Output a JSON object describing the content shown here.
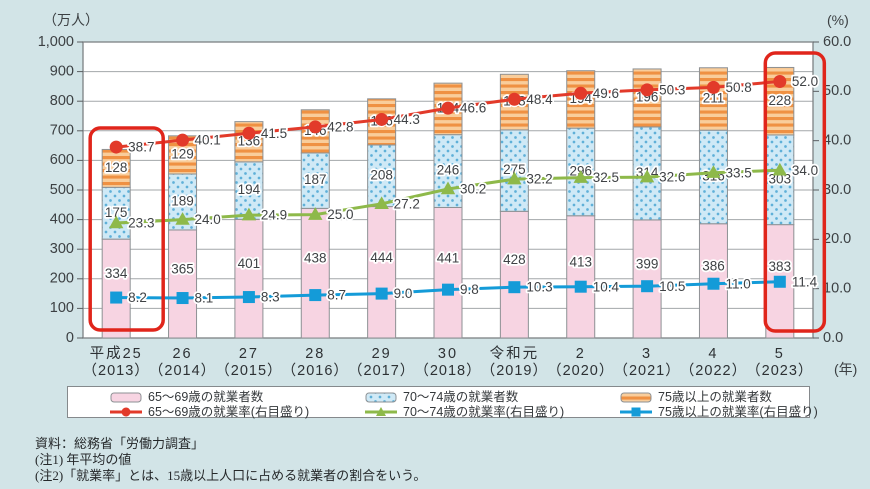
{
  "axes": {
    "left_unit": "（万人）",
    "right_unit": "(%)",
    "x_unit": "(年)",
    "left_ticks": [
      "1,000",
      "900",
      "800",
      "700",
      "600",
      "500",
      "400",
      "300",
      "200",
      "100",
      "0"
    ],
    "right_ticks": [
      "60.0",
      "50.0",
      "40.0",
      "30.0",
      "20.0",
      "10.0",
      "0.0"
    ]
  },
  "chart_data": {
    "type": "bar",
    "categories_era": [
      "平成25",
      "26",
      "27",
      "28",
      "29",
      "30",
      "令和元",
      "2",
      "3",
      "4",
      "5"
    ],
    "categories_year": [
      "（2013）",
      "（2014）",
      "（2015）",
      "（2016）",
      "（2017）",
      "（2018）",
      "（2019）",
      "（2020）",
      "（2021）",
      "（2022）",
      "（2023）"
    ],
    "series": [
      {
        "id": "bar-65-69",
        "kind": "bar",
        "label": "65～69歳の就業者数",
        "values": [
          334,
          365,
          401,
          438,
          444,
          441,
          428,
          413,
          399,
          386,
          383
        ]
      },
      {
        "id": "bar-70-74",
        "kind": "bar",
        "label": "70～74歳の就業者数",
        "values": [
          175,
          189,
          194,
          187,
          208,
          246,
          275,
          296,
          314,
          316,
          303
        ]
      },
      {
        "id": "bar-75plus",
        "kind": "bar",
        "label": "75歳以上の就業者数",
        "values": [
          128,
          129,
          136,
          146,
          156,
          174,
          188,
          194,
          196,
          211,
          228
        ]
      },
      {
        "id": "rate-65-69",
        "kind": "line",
        "label": "65～69歳の就業率(右目盛り)",
        "values": [
          38.7,
          40.1,
          41.5,
          42.8,
          44.3,
          46.6,
          48.4,
          49.6,
          50.3,
          50.8,
          52.0
        ]
      },
      {
        "id": "rate-70-74",
        "kind": "line",
        "label": "70～74歳の就業率(右目盛り)",
        "values": [
          23.3,
          24.0,
          24.9,
          25.0,
          27.2,
          30.2,
          32.2,
          32.5,
          32.6,
          33.5,
          34.0
        ]
      },
      {
        "id": "rate-75plus",
        "kind": "line",
        "label": "75歳以上の就業率(右目盛り)",
        "values": [
          8.2,
          8.1,
          8.3,
          8.7,
          9.0,
          9.8,
          10.3,
          10.4,
          10.5,
          11.0,
          11.4
        ]
      }
    ],
    "ylim_left": [
      0,
      1000
    ],
    "ylim_right": [
      0,
      60
    ],
    "grid": true,
    "legend_position": "bottom",
    "highlight_indices": [
      0,
      10
    ]
  },
  "footnotes": [
    "資料：総務省「労働力調査」",
    "(注1) 年平均の値",
    "(注2)「就業率」とは、15歳以上人口に占める就業者の割合をいう。"
  ],
  "colors": {
    "background": "#d2e4e7",
    "bar_65_69": "#f7d4e2",
    "bar_70_74_bg": "#cfe9f6",
    "bar_70_74_dot": "#5fb0d8",
    "bar_75plus_light": "#f9cd9b",
    "bar_75plus_dark": "#ef9143",
    "bar_stroke": "#8d9194",
    "rate_65_69": "#e23a2a",
    "rate_70_74": "#8eb94a",
    "rate_75plus": "#149bd8",
    "highlight": "#e0251b",
    "grid": "#a3a7aa"
  }
}
